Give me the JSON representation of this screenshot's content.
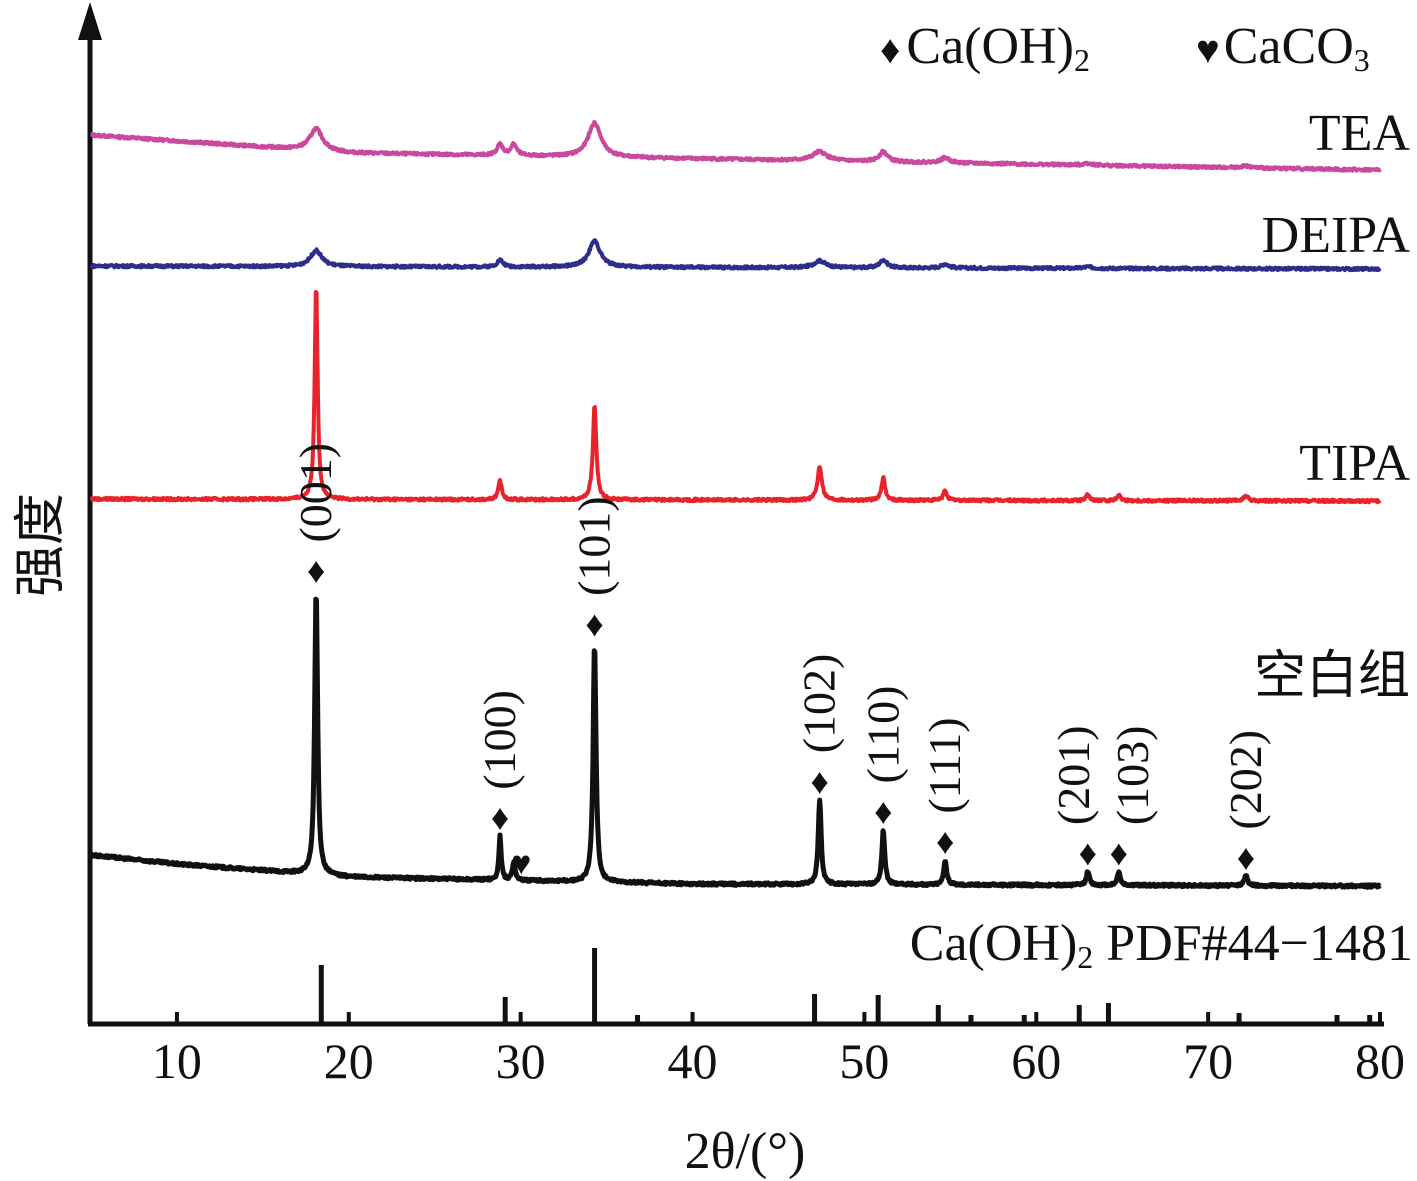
{
  "chart_data": {
    "type": "line",
    "title": "",
    "xlabel": "2θ/(°)",
    "ylabel": "强度",
    "xlim": [
      5,
      80
    ],
    "xticks": [
      10,
      20,
      30,
      40,
      50,
      60,
      70,
      80
    ],
    "ylim": [
      0,
      100
    ],
    "grid": false,
    "legend": {
      "placement": "top-right",
      "entries": [
        {
          "marker": "diamond",
          "symbol": "♦",
          "label": "Ca(OH)",
          "sub": "2"
        },
        {
          "marker": "heart",
          "symbol": "♥",
          "label": "CaCO",
          "sub": "3"
        }
      ]
    },
    "series": [
      {
        "name": "TEA",
        "color": "#c8499e",
        "baseline": [
          [
            5,
            88.8
          ],
          [
            20,
            87.0
          ],
          [
            80,
            85.3
          ]
        ],
        "peaks": [
          [
            18.1,
            2.2,
            0.45
          ],
          [
            28.8,
            1.1,
            0.2
          ],
          [
            29.6,
            1.1,
            0.2
          ],
          [
            34.3,
            3.4,
            0.45
          ],
          [
            47.4,
            0.9,
            0.5
          ],
          [
            51.1,
            1.0,
            0.3
          ],
          [
            54.7,
            0.5,
            0.3
          ],
          [
            63.0,
            0.2,
            0.3
          ],
          [
            72.2,
            0.2,
            0.3
          ]
        ]
      },
      {
        "name": "DEIPA",
        "color": "#2d2d8c",
        "baseline": [
          [
            5,
            75.7
          ],
          [
            80,
            75.4
          ]
        ],
        "peaks": [
          [
            18.1,
            1.6,
            0.4
          ],
          [
            28.8,
            0.7,
            0.2
          ],
          [
            34.3,
            2.6,
            0.4
          ],
          [
            47.4,
            0.7,
            0.4
          ],
          [
            51.1,
            0.8,
            0.25
          ],
          [
            54.7,
            0.4,
            0.25
          ],
          [
            63.0,
            0.15,
            0.3
          ]
        ]
      },
      {
        "name": "TIPA",
        "color": "#e8242a",
        "baseline": [
          [
            5,
            52.4
          ],
          [
            80,
            52.2
          ]
        ],
        "peaks": [
          [
            18.1,
            21.6,
            0.1
          ],
          [
            28.8,
            1.9,
            0.12
          ],
          [
            34.3,
            9.4,
            0.12
          ],
          [
            47.4,
            3.4,
            0.15
          ],
          [
            51.1,
            2.3,
            0.12
          ],
          [
            54.7,
            1.0,
            0.12
          ],
          [
            63.0,
            0.6,
            0.12
          ],
          [
            64.8,
            0.6,
            0.12
          ],
          [
            72.2,
            0.5,
            0.15
          ]
        ]
      },
      {
        "name": "空白组",
        "color": "#111111",
        "baseline": [
          [
            5,
            16.8
          ],
          [
            10,
            15.9
          ],
          [
            20,
            14.6
          ],
          [
            40,
            13.9
          ],
          [
            80,
            13.7
          ]
        ],
        "peaks": [
          [
            18.1,
            28.6,
            0.1
          ],
          [
            28.8,
            4.4,
            0.08
          ],
          [
            29.6,
            1.8,
            0.1
          ],
          [
            34.3,
            24.0,
            0.1
          ],
          [
            47.4,
            8.5,
            0.1
          ],
          [
            51.1,
            5.5,
            0.1
          ],
          [
            54.7,
            2.5,
            0.1
          ],
          [
            63.0,
            1.4,
            0.1
          ],
          [
            64.8,
            1.4,
            0.1
          ],
          [
            72.2,
            1.0,
            0.12
          ]
        ]
      }
    ],
    "reference": {
      "label": "Ca(OH)",
      "label_sub": "2",
      "label_rest": " PDF#44−1481",
      "sticks": [
        [
          18.4,
          5.8
        ],
        [
          29.1,
          2.6
        ],
        [
          34.3,
          7.5
        ],
        [
          36.8,
          0.8
        ],
        [
          47.1,
          2.9
        ],
        [
          50.8,
          2.8
        ],
        [
          54.3,
          1.8
        ],
        [
          56.2,
          0.8
        ],
        [
          59.3,
          0.8
        ],
        [
          62.5,
          1.8
        ],
        [
          64.2,
          2.0
        ],
        [
          71.8,
          1.0
        ],
        [
          77.5,
          0.8
        ],
        [
          79.4,
          0.8
        ]
      ]
    },
    "annotations": [
      {
        "hkl": "(001)",
        "x": 18.1,
        "marker": "♦"
      },
      {
        "hkl": "(100)",
        "x": 28.8,
        "marker": "♦"
      },
      {
        "hkl": "",
        "x": 29.8,
        "marker": "♥"
      },
      {
        "hkl": "(101)",
        "x": 34.3,
        "marker": "♦"
      },
      {
        "hkl": "(102)",
        "x": 47.4,
        "marker": "♦"
      },
      {
        "hkl": "(110)",
        "x": 51.1,
        "marker": "♦"
      },
      {
        "hkl": "(111)",
        "x": 54.7,
        "marker": "♦"
      },
      {
        "hkl": "(201)",
        "x": 63.0,
        "marker": "♦"
      },
      {
        "hkl": "(103)",
        "x": 64.8,
        "marker": "♦"
      },
      {
        "hkl": "(202)",
        "x": 72.2,
        "marker": "♦"
      }
    ]
  }
}
